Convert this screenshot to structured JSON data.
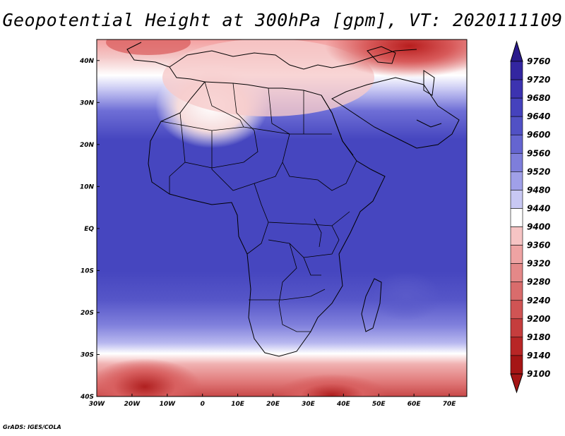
{
  "title": "Geopotential Height at 300hPa [gpm], VT: 2020111109",
  "footer": "GrADS: IGES/COLA",
  "map": {
    "lon_range": [
      -30,
      75
    ],
    "lat_range": [
      -40,
      45
    ],
    "lon_ticks": [
      "30W",
      "20W",
      "10W",
      "0",
      "10E",
      "20E",
      "30E",
      "40E",
      "50E",
      "60E",
      "70E"
    ],
    "lat_ticks": [
      "40N",
      "30N",
      "20N",
      "10N",
      "EQ",
      "10S",
      "20S",
      "30S",
      "40S"
    ]
  },
  "colorbar": {
    "labels": [
      "9760",
      "9720",
      "9680",
      "9640",
      "9600",
      "9560",
      "9520",
      "9480",
      "9440",
      "9400",
      "9360",
      "9320",
      "9280",
      "9240",
      "9200",
      "9180",
      "9140",
      "9100"
    ],
    "colors": [
      "#2a1a8c",
      "#3326a0",
      "#3c33b0",
      "#4542bd",
      "#5151c5",
      "#6565d0",
      "#7e7edb",
      "#a0a0e8",
      "#c8c8f3",
      "#ffffff",
      "#f6c4c4",
      "#eea3a3",
      "#e48888",
      "#d96c6c",
      "#d05454",
      "#c53d3d",
      "#b82626",
      "#a51515"
    ]
  }
}
